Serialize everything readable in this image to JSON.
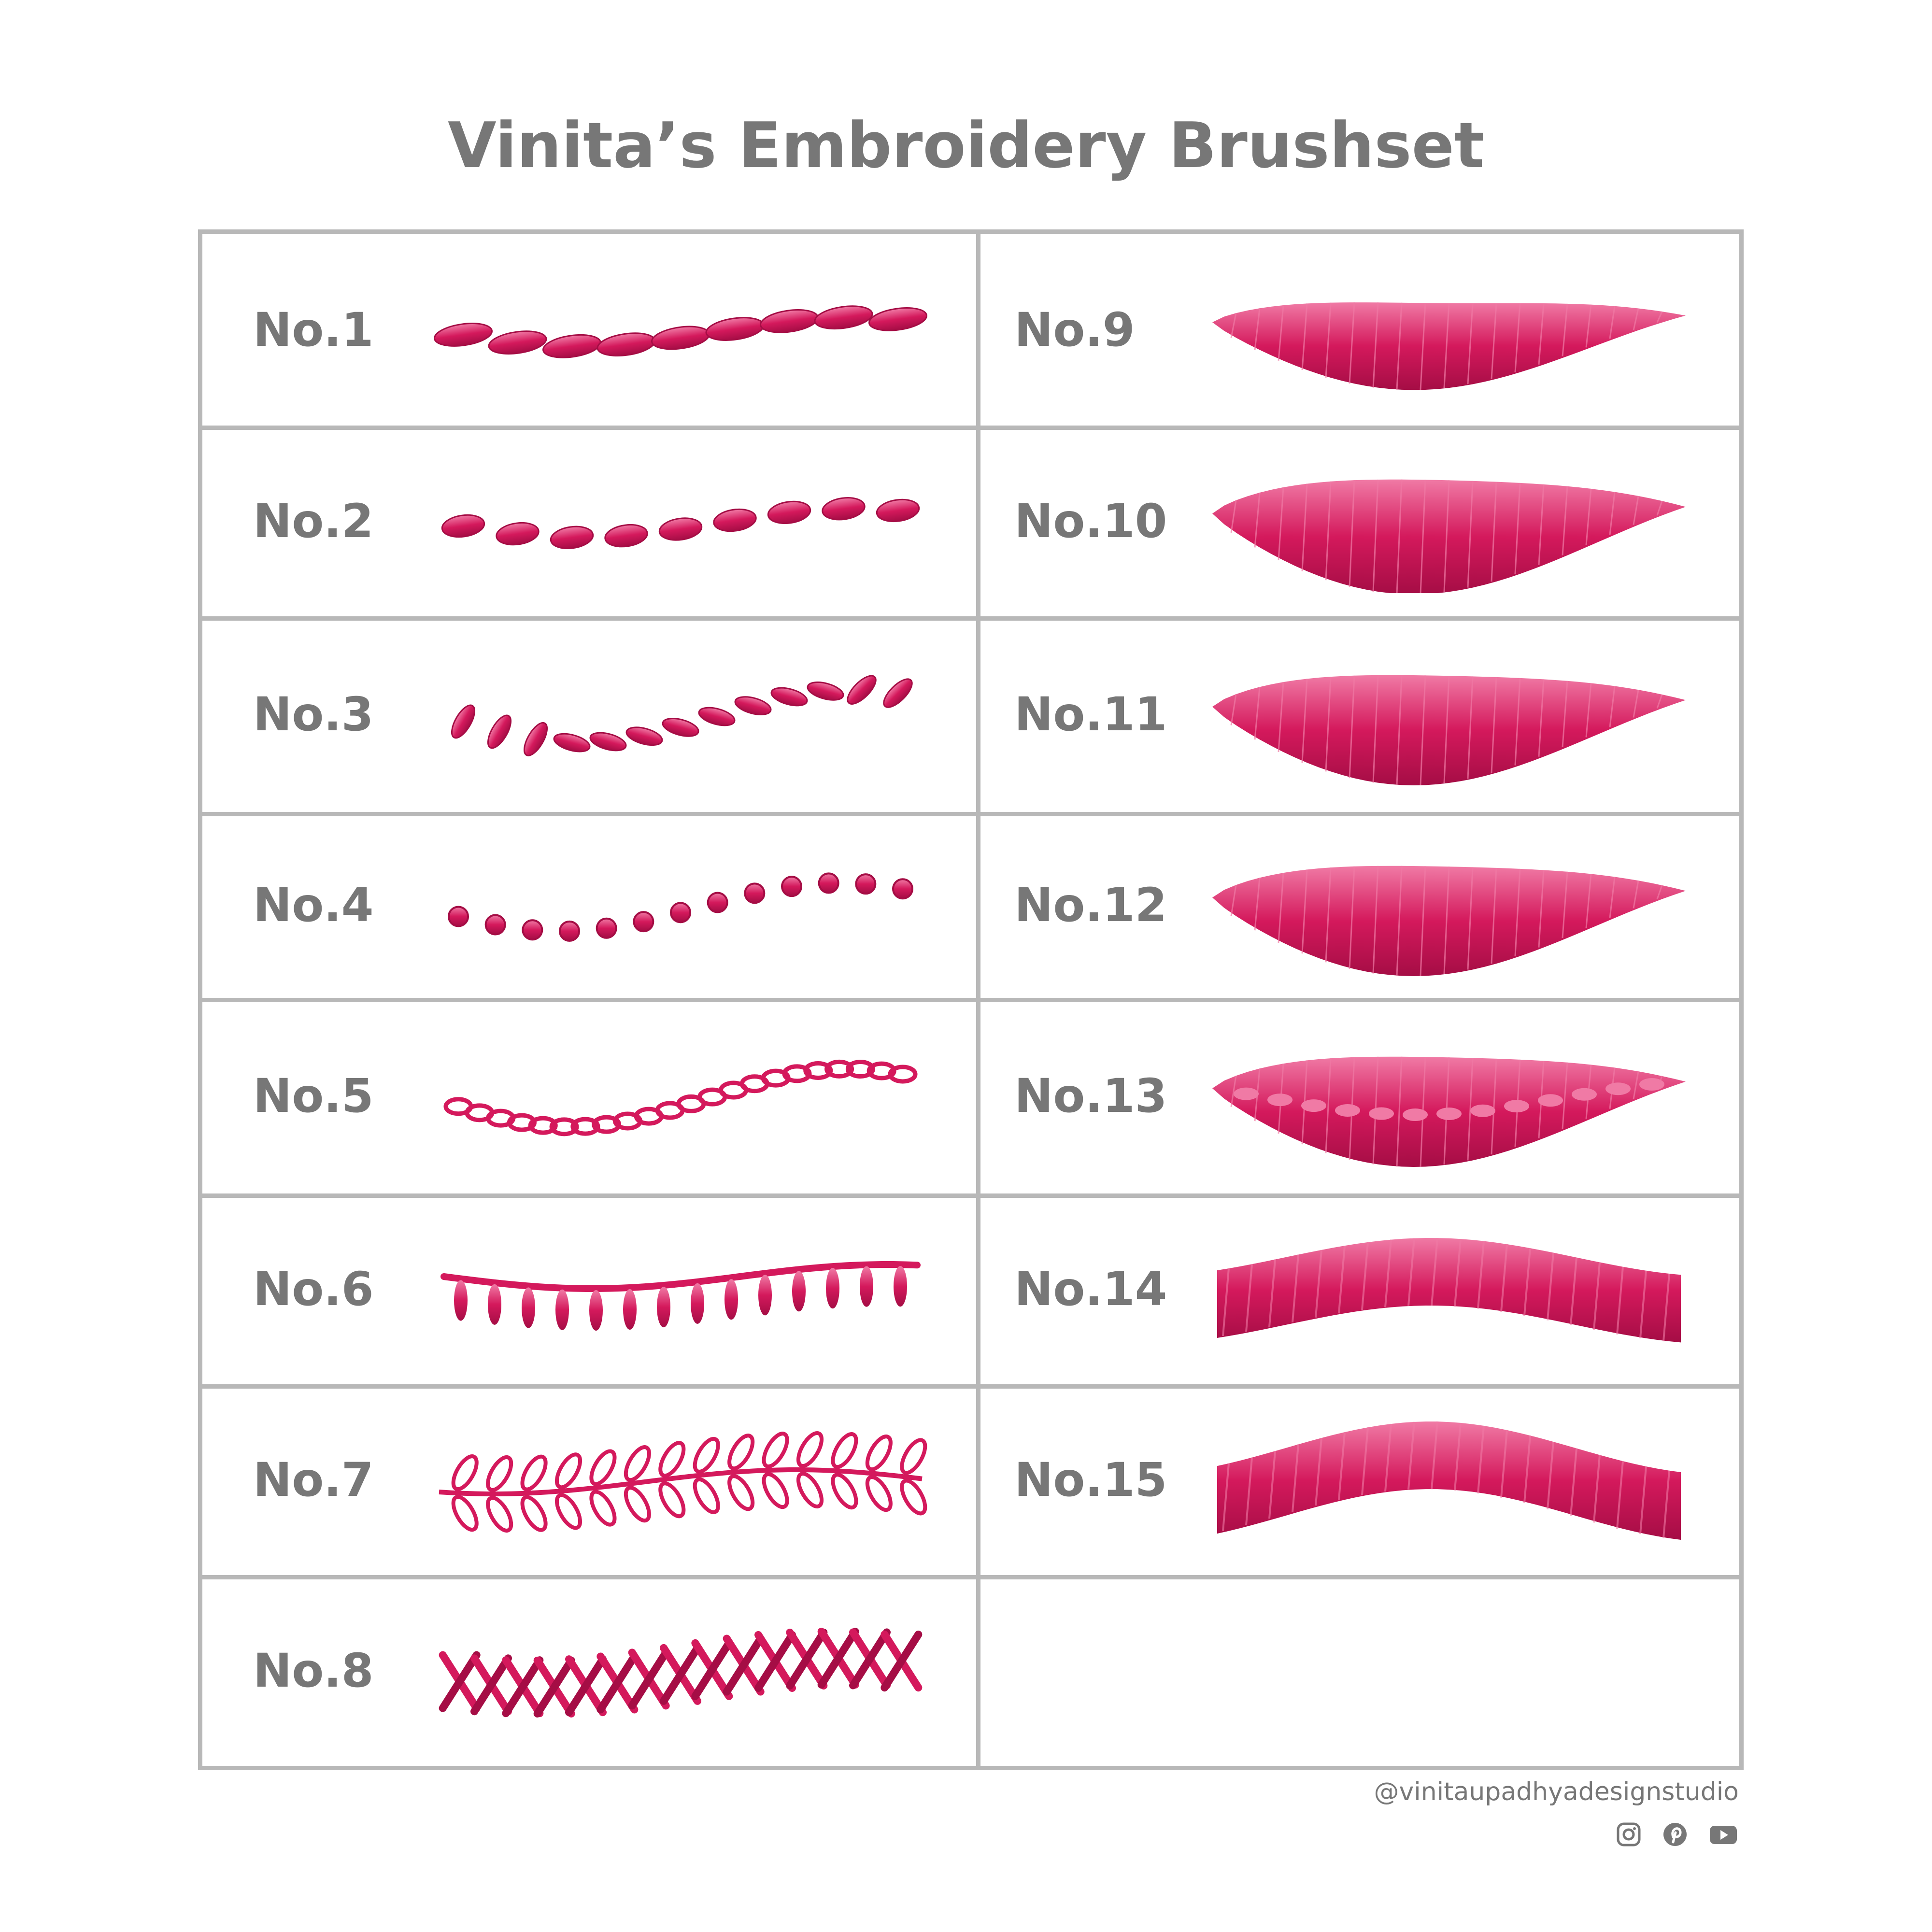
{
  "title": "Vinita’s Embroidery Brushset",
  "colors": {
    "thread": "#d4195c",
    "thread_dark": "#a50d45",
    "thread_light": "#f07aa5",
    "text": "#777777",
    "grid": "#b8b8b8"
  },
  "brushes": [
    {
      "label": "No.1",
      "stitch": "satin-oval-chain"
    },
    {
      "label": "No.2",
      "stitch": "separated-ovals"
    },
    {
      "label": "No.3",
      "stitch": "slanted-leaf-stitches"
    },
    {
      "label": "No.4",
      "stitch": "french-knots"
    },
    {
      "label": "No.5",
      "stitch": "chain-stitch"
    },
    {
      "label": "No.6",
      "stitch": "blanket-loop-stitch"
    },
    {
      "label": "No.7",
      "stitch": "fern-lazy-daisy"
    },
    {
      "label": "No.8",
      "stitch": "cross-herringbone"
    },
    {
      "label": "No.9",
      "stitch": "satin-leaf-thin"
    },
    {
      "label": "No.10",
      "stitch": "satin-leaf-wide"
    },
    {
      "label": "No.11",
      "stitch": "satin-leaf-ribbed"
    },
    {
      "label": "No.12",
      "stitch": "satin-leaf-fringed"
    },
    {
      "label": "No.13",
      "stitch": "satin-leaf-beaded"
    },
    {
      "label": "No.14",
      "stitch": "fringe-band"
    },
    {
      "label": "No.15",
      "stitch": "fringe-band-wavy"
    }
  ],
  "footer": {
    "handle": "@vinitaupadhyadesignstudio",
    "socials": [
      "instagram-icon",
      "pinterest-icon",
      "youtube-icon"
    ]
  }
}
